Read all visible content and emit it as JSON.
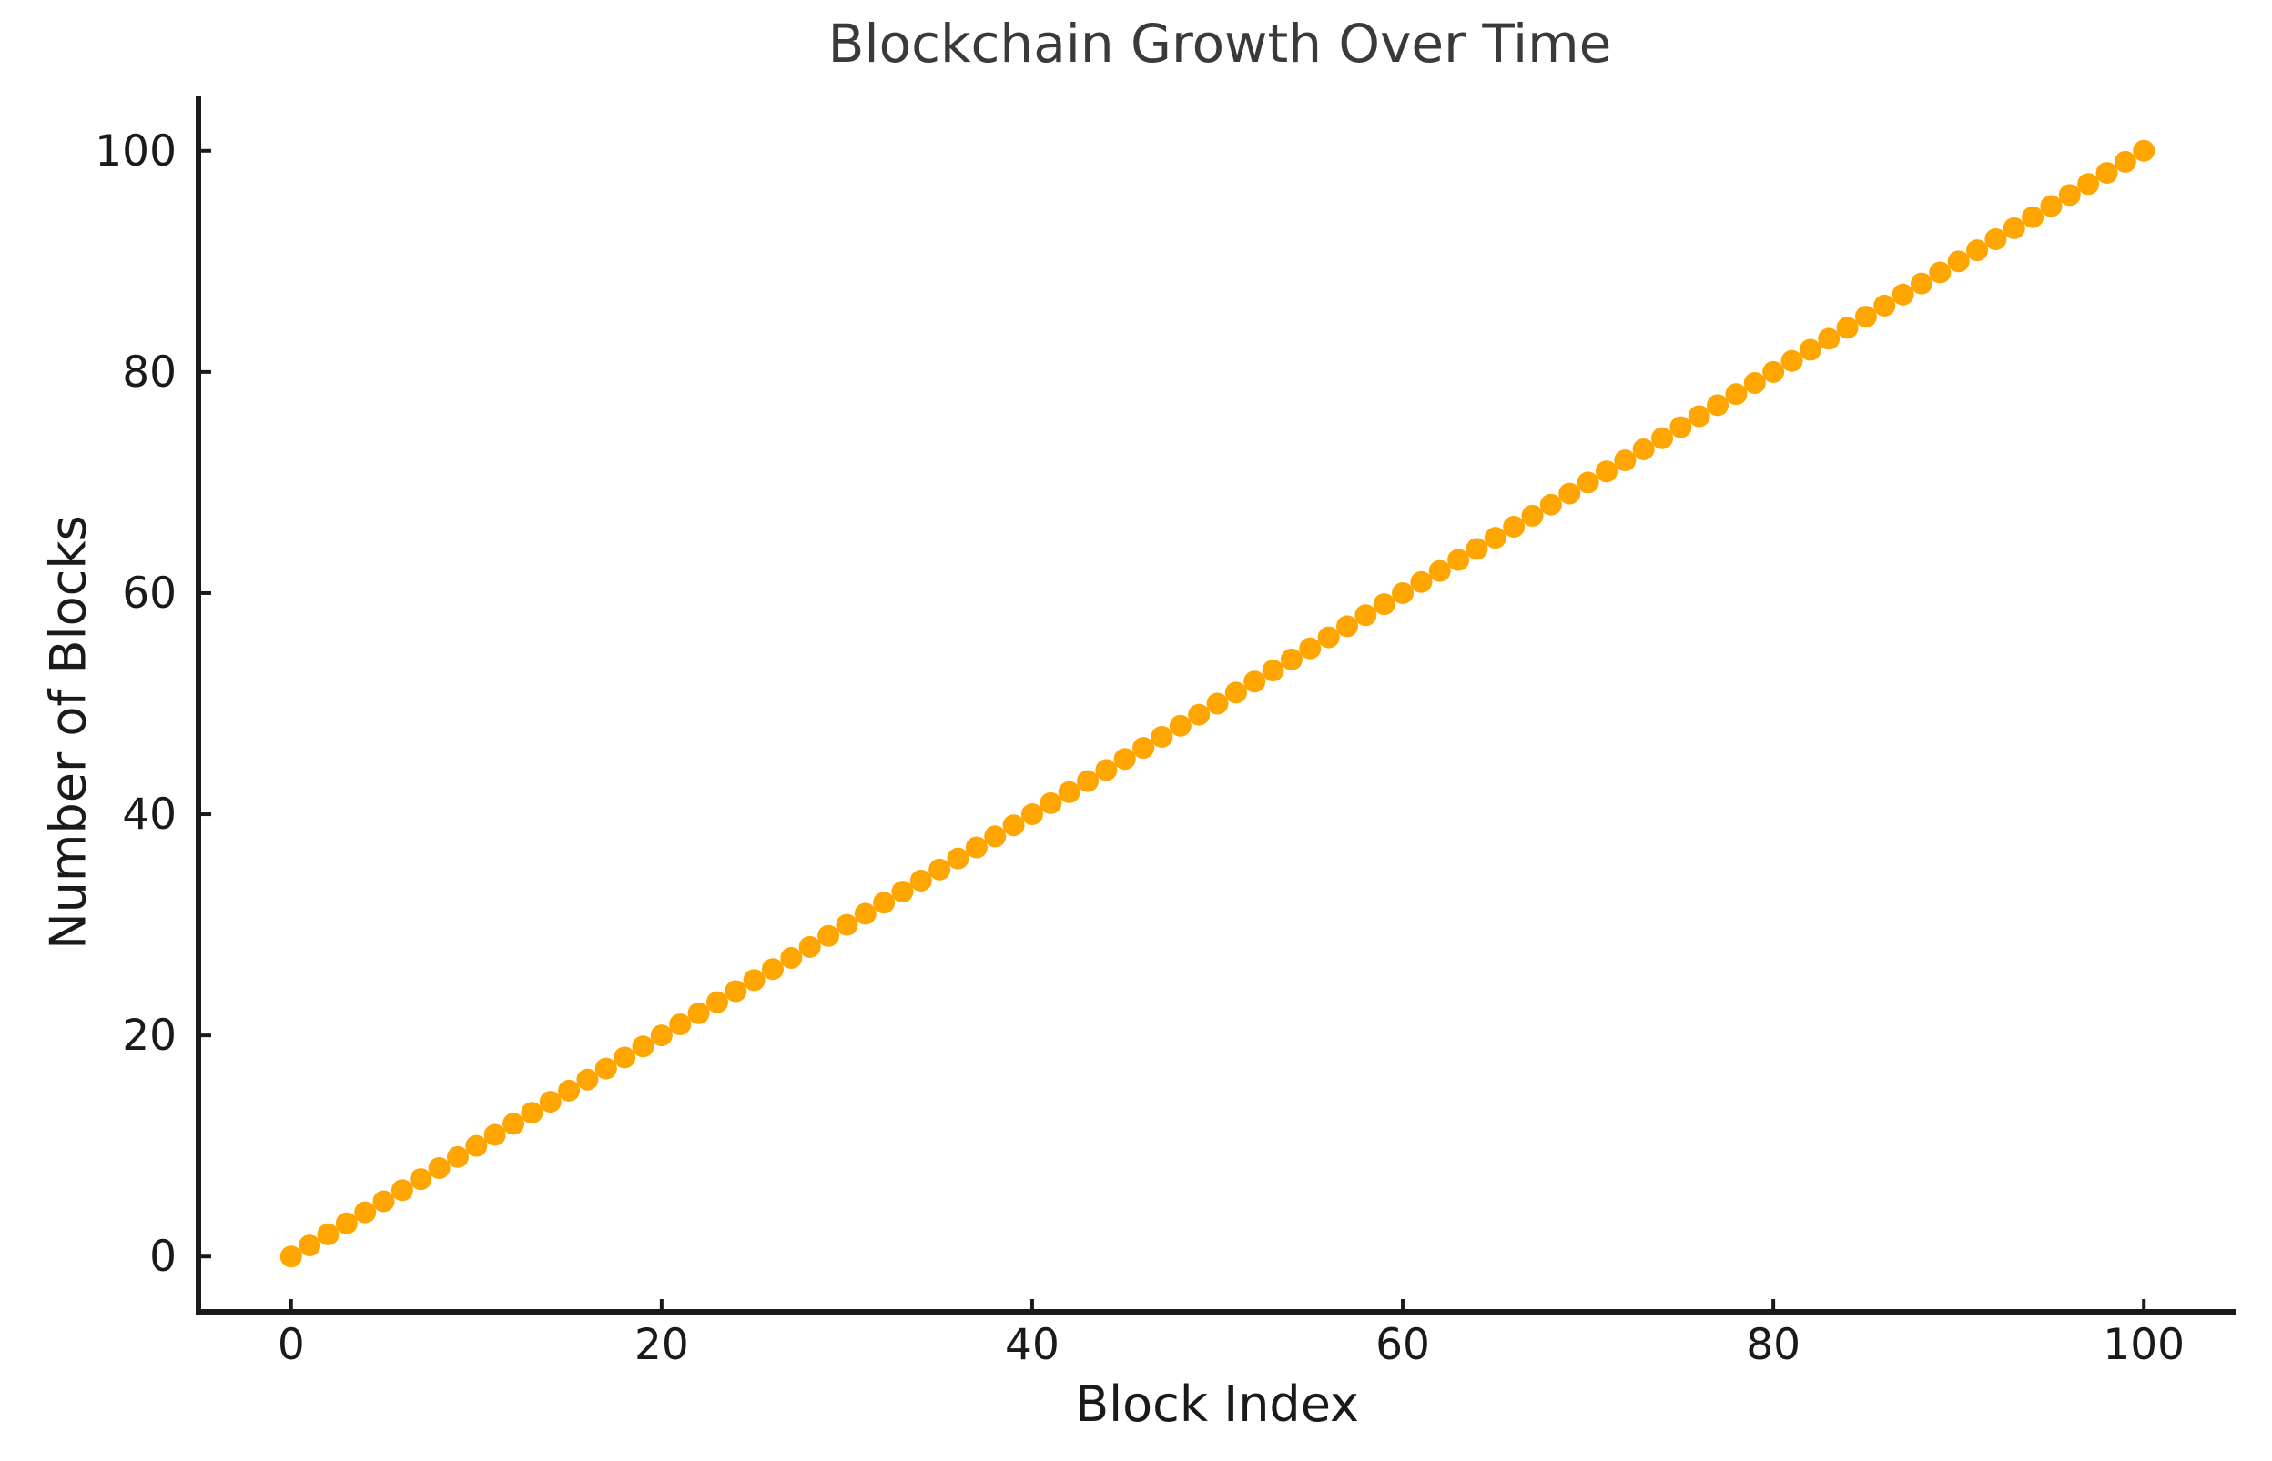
{
  "chart_data": {
    "type": "scatter",
    "title": "Blockchain Growth Over Time",
    "xlabel": "Block Index",
    "ylabel": "Number of Blocks",
    "xlim": [
      -5,
      105
    ],
    "ylim": [
      -5,
      105
    ],
    "xticks": [
      0,
      20,
      40,
      60,
      80,
      100
    ],
    "yticks": [
      0,
      20,
      40,
      60,
      80,
      100
    ],
    "grid": false,
    "legend": false,
    "series": [
      {
        "name": "blocks",
        "marker": "circle",
        "x": [
          0,
          1,
          2,
          3,
          4,
          5,
          6,
          7,
          8,
          9,
          10,
          11,
          12,
          13,
          14,
          15,
          16,
          17,
          18,
          19,
          20,
          21,
          22,
          23,
          24,
          25,
          26,
          27,
          28,
          29,
          30,
          31,
          32,
          33,
          34,
          35,
          36,
          37,
          38,
          39,
          40,
          41,
          42,
          43,
          44,
          45,
          46,
          47,
          48,
          49,
          50,
          51,
          52,
          53,
          54,
          55,
          56,
          57,
          58,
          59,
          60,
          61,
          62,
          63,
          64,
          65,
          66,
          67,
          68,
          69,
          70,
          71,
          72,
          73,
          74,
          75,
          76,
          77,
          78,
          79,
          80,
          81,
          82,
          83,
          84,
          85,
          86,
          87,
          88,
          89,
          90,
          91,
          92,
          93,
          94,
          95,
          96,
          97,
          98,
          99,
          100
        ],
        "y": [
          0,
          1,
          2,
          3,
          4,
          5,
          6,
          7,
          8,
          9,
          10,
          11,
          12,
          13,
          14,
          15,
          16,
          17,
          18,
          19,
          20,
          21,
          22,
          23,
          24,
          25,
          26,
          27,
          28,
          29,
          30,
          31,
          32,
          33,
          34,
          35,
          36,
          37,
          38,
          39,
          40,
          41,
          42,
          43,
          44,
          45,
          46,
          47,
          48,
          49,
          50,
          51,
          52,
          53,
          54,
          55,
          56,
          57,
          58,
          59,
          60,
          61,
          62,
          63,
          64,
          65,
          66,
          67,
          68,
          69,
          70,
          71,
          72,
          73,
          74,
          75,
          76,
          77,
          78,
          79,
          80,
          81,
          82,
          83,
          84,
          85,
          86,
          87,
          88,
          89,
          90,
          91,
          92,
          93,
          94,
          95,
          96,
          97,
          98,
          99,
          100
        ]
      }
    ],
    "colors": {
      "marker": "#ffa500",
      "axis": "#1a1a1a",
      "tick_label": "#1a1a1a",
      "title": "#3a3a3a",
      "background": "#ffffff"
    }
  }
}
